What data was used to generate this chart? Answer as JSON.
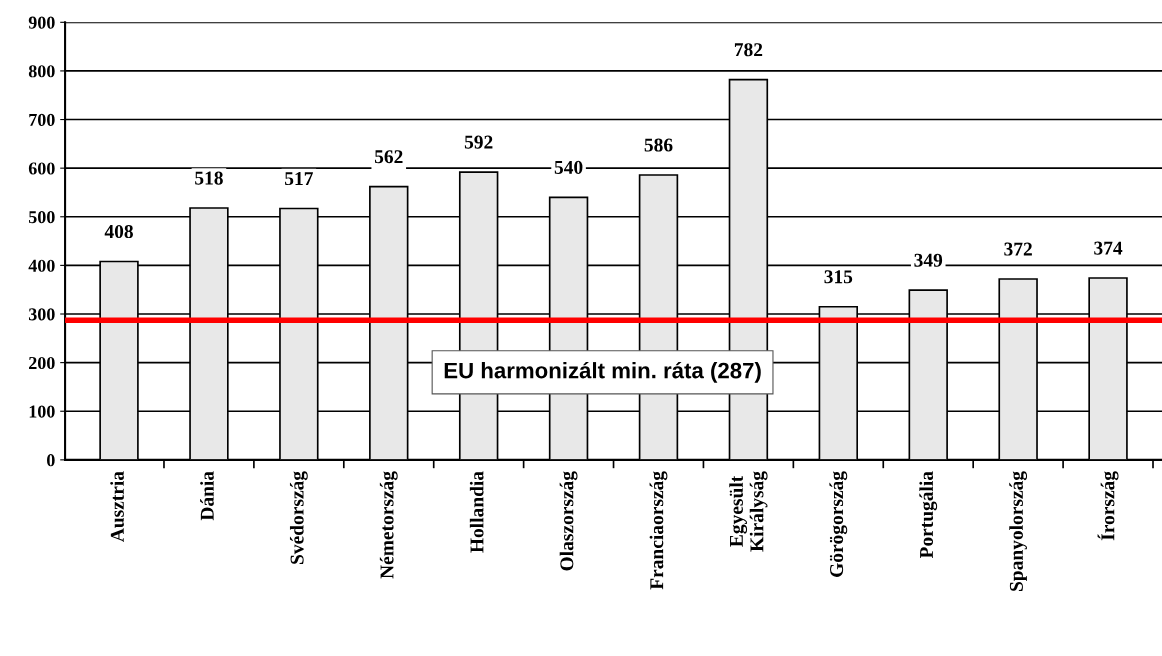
{
  "chart_data": {
    "type": "bar",
    "categories": [
      "Ausztria",
      "Dánia",
      "Svédország",
      "Németország",
      "Hollandia",
      "Olaszország",
      "Franciaország",
      "Egyesült\nKirályság",
      "Görögország",
      "Portugália",
      "Spanyolország",
      "Írország"
    ],
    "values": [
      408,
      518,
      517,
      562,
      592,
      540,
      586,
      782,
      315,
      349,
      372,
      374
    ],
    "color": "#e8e8e8",
    "ylim": [
      0,
      900
    ],
    "yticks": [
      0,
      100,
      200,
      300,
      400,
      500,
      600,
      700,
      800,
      900
    ],
    "grid": "y",
    "data_labels": true,
    "ref_lines": [
      {
        "axis": "y",
        "value": 287,
        "label": "EU harmonizált min. ráta (287)",
        "color": "#ff0000",
        "line_style": "solid"
      }
    ]
  }
}
